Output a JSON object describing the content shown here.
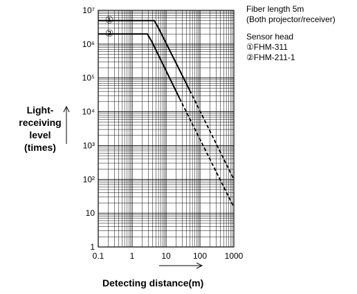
{
  "chart_data": {
    "type": "line",
    "x_scale": "log",
    "y_scale": "log",
    "xlim": [
      0.1,
      1000
    ],
    "ylim": [
      1,
      10000000
    ],
    "x_ticks": [
      "0.1",
      "1",
      "10",
      "100",
      "1000"
    ],
    "y_ticks": [
      "1",
      "10",
      "10²",
      "10³",
      "10⁴",
      "10⁵",
      "10⁶",
      "10⁷"
    ],
    "xlabel": "Detecting distance(m)",
    "ylabel": "Light-receiving level (times)",
    "ylabel_lines": [
      "Light-",
      "receiving",
      "level",
      "(times)"
    ],
    "grid": true,
    "series": [
      {
        "name": "①",
        "solid": [
          [
            0.1,
            5000000
          ],
          [
            4.5,
            5000000
          ],
          [
            6,
            3000000
          ],
          [
            50,
            43000
          ]
        ],
        "dashed": [
          [
            50,
            43000
          ],
          [
            1000,
            100
          ]
        ]
      },
      {
        "name": "②",
        "solid": [
          [
            0.1,
            2000000
          ],
          [
            2.8,
            2000000
          ],
          [
            3.8,
            1200000
          ],
          [
            25,
            25000
          ]
        ],
        "dashed": [
          [
            25,
            25000
          ],
          [
            1000,
            15
          ]
        ]
      }
    ]
  },
  "legend": {
    "line1": "Fiber length 5m",
    "line2": "(Both projector/receiver)",
    "line3": "Sensor head",
    "item1": "①FHM-311",
    "item2": "②FHM-211-1"
  }
}
